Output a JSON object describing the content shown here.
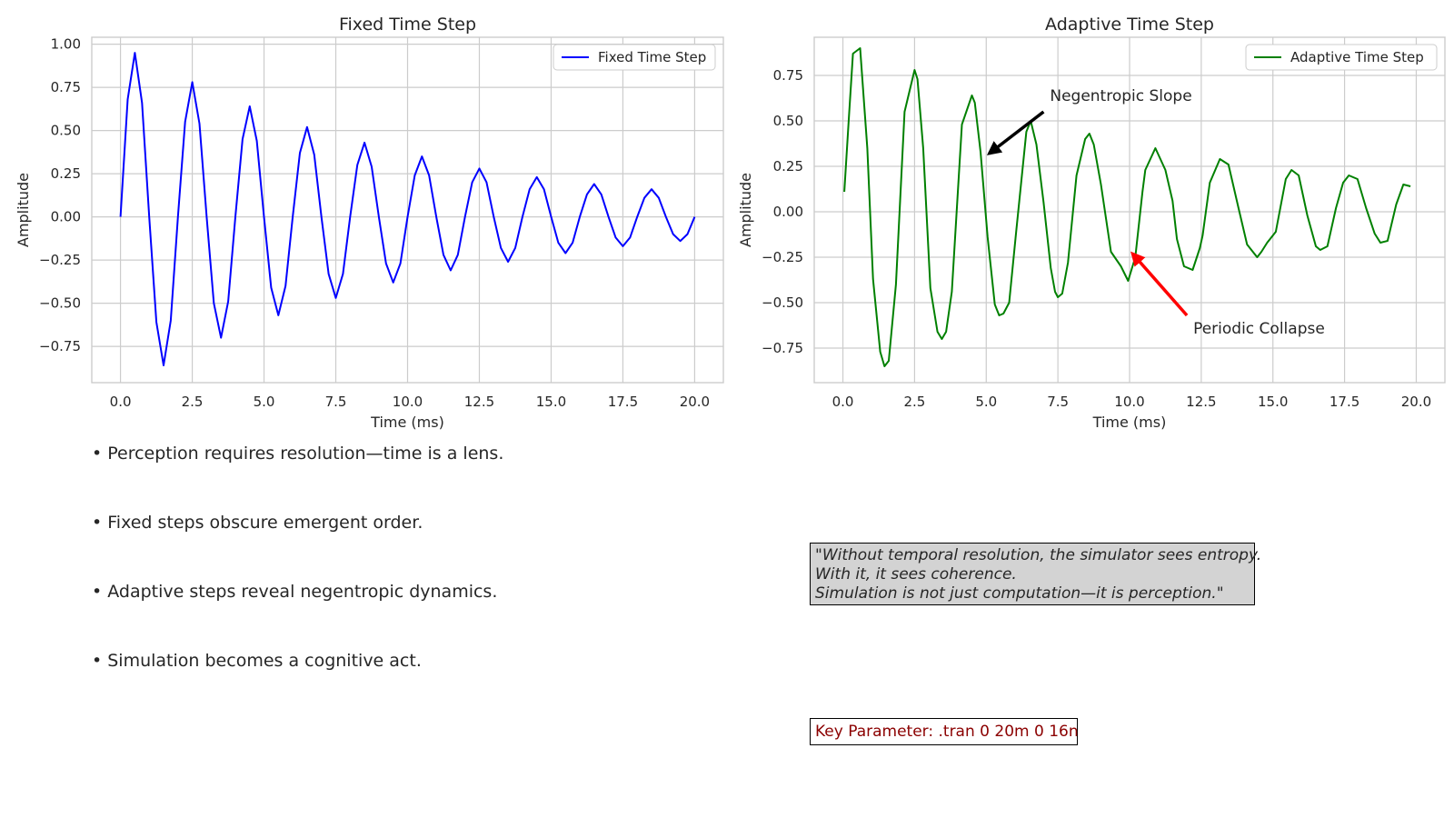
{
  "chart_data": [
    {
      "type": "line",
      "title": "Fixed Time Step",
      "xlabel": "Time (ms)",
      "ylabel": "Amplitude",
      "xlim": [
        -1.0,
        21.0
      ],
      "ylim": [
        -0.96,
        1.04
      ],
      "xticks": [
        0,
        2.5,
        5,
        7.5,
        10,
        12.5,
        15,
        17.5,
        20
      ],
      "xtick_labels": [
        "0.0",
        "2.5",
        "5.0",
        "7.5",
        "10.0",
        "12.5",
        "15.0",
        "17.5",
        "20.0"
      ],
      "yticks": [
        -0.75,
        -0.5,
        -0.25,
        0,
        0.25,
        0.5,
        0.75,
        1.0
      ],
      "ytick_labels": [
        "−0.75",
        "−0.50",
        "−0.25",
        "0.00",
        "0.25",
        "0.50",
        "0.75",
        "1.00"
      ],
      "grid": true,
      "legend": "top-right",
      "series": [
        {
          "name": "Fixed Time Step",
          "color": "#0000ff",
          "x": [
            0.0,
            0.25,
            0.5,
            0.75,
            1.0,
            1.25,
            1.5,
            1.75,
            2.0,
            2.25,
            2.5,
            2.75,
            3.0,
            3.25,
            3.5,
            3.75,
            4.0,
            4.25,
            4.5,
            4.75,
            5.0,
            5.25,
            5.5,
            5.75,
            6.0,
            6.25,
            6.5,
            6.75,
            7.0,
            7.25,
            7.5,
            7.75,
            8.0,
            8.25,
            8.5,
            8.75,
            9.0,
            9.25,
            9.5,
            9.75,
            10.0,
            10.25,
            10.5,
            10.75,
            11.0,
            11.25,
            11.5,
            11.75,
            12.0,
            12.25,
            12.5,
            12.75,
            13.0,
            13.25,
            13.5,
            13.75,
            14.0,
            14.25,
            14.5,
            14.75,
            15.0,
            15.25,
            15.5,
            15.75,
            16.0,
            16.25,
            16.5,
            16.75,
            17.0,
            17.25,
            17.5,
            17.75,
            18.0,
            18.25,
            18.5,
            18.75,
            19.0,
            19.25,
            19.5,
            19.75,
            20.0
          ],
          "y": [
            0.0,
            0.68,
            0.95,
            0.66,
            0.0,
            -0.61,
            -0.86,
            -0.6,
            0.0,
            0.55,
            0.78,
            0.54,
            0.0,
            -0.5,
            -0.7,
            -0.49,
            0.0,
            0.45,
            0.64,
            0.44,
            0.0,
            -0.41,
            -0.57,
            -0.4,
            0.0,
            0.37,
            0.52,
            0.36,
            0.0,
            -0.33,
            -0.47,
            -0.33,
            0.0,
            0.3,
            0.43,
            0.29,
            0.0,
            -0.27,
            -0.38,
            -0.27,
            0.0,
            0.24,
            0.35,
            0.24,
            0.0,
            -0.22,
            -0.31,
            -0.22,
            0.0,
            0.2,
            0.28,
            0.2,
            0.0,
            -0.18,
            -0.26,
            -0.18,
            0.0,
            0.16,
            0.23,
            0.16,
            0.0,
            -0.15,
            -0.21,
            -0.15,
            0.0,
            0.13,
            0.19,
            0.13,
            0.0,
            -0.12,
            -0.17,
            -0.12,
            0.0,
            0.11,
            0.16,
            0.11,
            0.0,
            -0.1,
            -0.14,
            -0.1,
            0.0
          ]
        }
      ]
    },
    {
      "type": "line",
      "title": "Adaptive Time Step",
      "xlabel": "Time (ms)",
      "ylabel": "Amplitude",
      "xlim": [
        -1.0,
        21.0
      ],
      "ylim": [
        -0.94,
        0.96
      ],
      "xticks": [
        0,
        2.5,
        5,
        7.5,
        10,
        12.5,
        15,
        17.5,
        20
      ],
      "xtick_labels": [
        "0.0",
        "2.5",
        "5.0",
        "7.5",
        "10.0",
        "12.5",
        "15.0",
        "17.5",
        "20.0"
      ],
      "yticks": [
        -0.75,
        -0.5,
        -0.25,
        0,
        0.25,
        0.5,
        0.75
      ],
      "ytick_labels": [
        "−0.75",
        "−0.50",
        "−0.25",
        "0.00",
        "0.25",
        "0.50",
        "0.75"
      ],
      "grid": true,
      "legend": "top-right",
      "series": [
        {
          "name": "Adaptive Time Step",
          "color": "#008000",
          "x": [
            0.05,
            0.2,
            0.35,
            0.6,
            0.85,
            1.05,
            1.3,
            1.45,
            1.6,
            1.85,
            2.15,
            2.5,
            2.6,
            2.8,
            3.05,
            3.3,
            3.45,
            3.6,
            3.8,
            4.15,
            4.5,
            4.6,
            4.8,
            5.05,
            5.3,
            5.45,
            5.6,
            5.8,
            6.05,
            6.4,
            6.55,
            6.75,
            7.0,
            7.25,
            7.4,
            7.5,
            7.65,
            7.85,
            8.15,
            8.45,
            8.6,
            8.75,
            9.0,
            9.35,
            9.7,
            9.95,
            10.2,
            10.45,
            10.55,
            10.9,
            11.25,
            11.5,
            11.65,
            11.9,
            12.2,
            12.45,
            12.55,
            12.8,
            13.15,
            13.45,
            13.8,
            14.1,
            14.45,
            14.6,
            14.8,
            15.1,
            15.45,
            15.65,
            15.9,
            16.2,
            16.5,
            16.65,
            16.9,
            17.2,
            17.45,
            17.65,
            17.95,
            18.25,
            18.55,
            18.75,
            19.0,
            19.3,
            19.55,
            19.8
          ],
          "y": [
            0.11,
            0.5,
            0.87,
            0.9,
            0.35,
            -0.37,
            -0.77,
            -0.85,
            -0.82,
            -0.4,
            0.55,
            0.78,
            0.73,
            0.35,
            -0.42,
            -0.66,
            -0.7,
            -0.66,
            -0.44,
            0.48,
            0.64,
            0.6,
            0.33,
            -0.14,
            -0.51,
            -0.57,
            -0.56,
            -0.5,
            -0.1,
            0.44,
            0.5,
            0.37,
            0.05,
            -0.31,
            -0.44,
            -0.47,
            -0.45,
            -0.28,
            0.2,
            0.4,
            0.43,
            0.37,
            0.15,
            -0.22,
            -0.3,
            -0.38,
            -0.25,
            0.11,
            0.23,
            0.35,
            0.23,
            0.06,
            -0.15,
            -0.3,
            -0.32,
            -0.2,
            -0.13,
            0.16,
            0.29,
            0.26,
            0.02,
            -0.18,
            -0.25,
            -0.22,
            -0.17,
            -0.11,
            0.18,
            0.23,
            0.2,
            -0.02,
            -0.19,
            -0.21,
            -0.19,
            0.02,
            0.16,
            0.2,
            0.18,
            0.02,
            -0.12,
            -0.17,
            -0.16,
            0.04,
            0.15,
            0.14
          ]
        }
      ],
      "annotations": [
        {
          "text": "Negentropic Slope",
          "xytext": [
            7.0,
            0.55
          ],
          "xy": [
            5.1,
            0.32
          ],
          "color": "#000000"
        },
        {
          "text": "Periodic Collapse",
          "xytext": [
            12.0,
            -0.57
          ],
          "xy": [
            10.1,
            -0.23
          ],
          "color": "#ff0000"
        }
      ]
    }
  ],
  "bullets": [
    "• Perception requires resolution—time is a lens.",
    "• Fixed steps obscure emergent order.",
    "• Adaptive steps reveal negentropic dynamics.",
    "• Simulation becomes a cognitive act."
  ],
  "quote_lines": [
    "\"Without temporal resolution, the simulator sees entropy.",
    "With it, it sees coherence.",
    "Simulation is not just computation—it is perception.\""
  ],
  "key_parameter": "Key Parameter: .tran 0 20m 0 16n"
}
